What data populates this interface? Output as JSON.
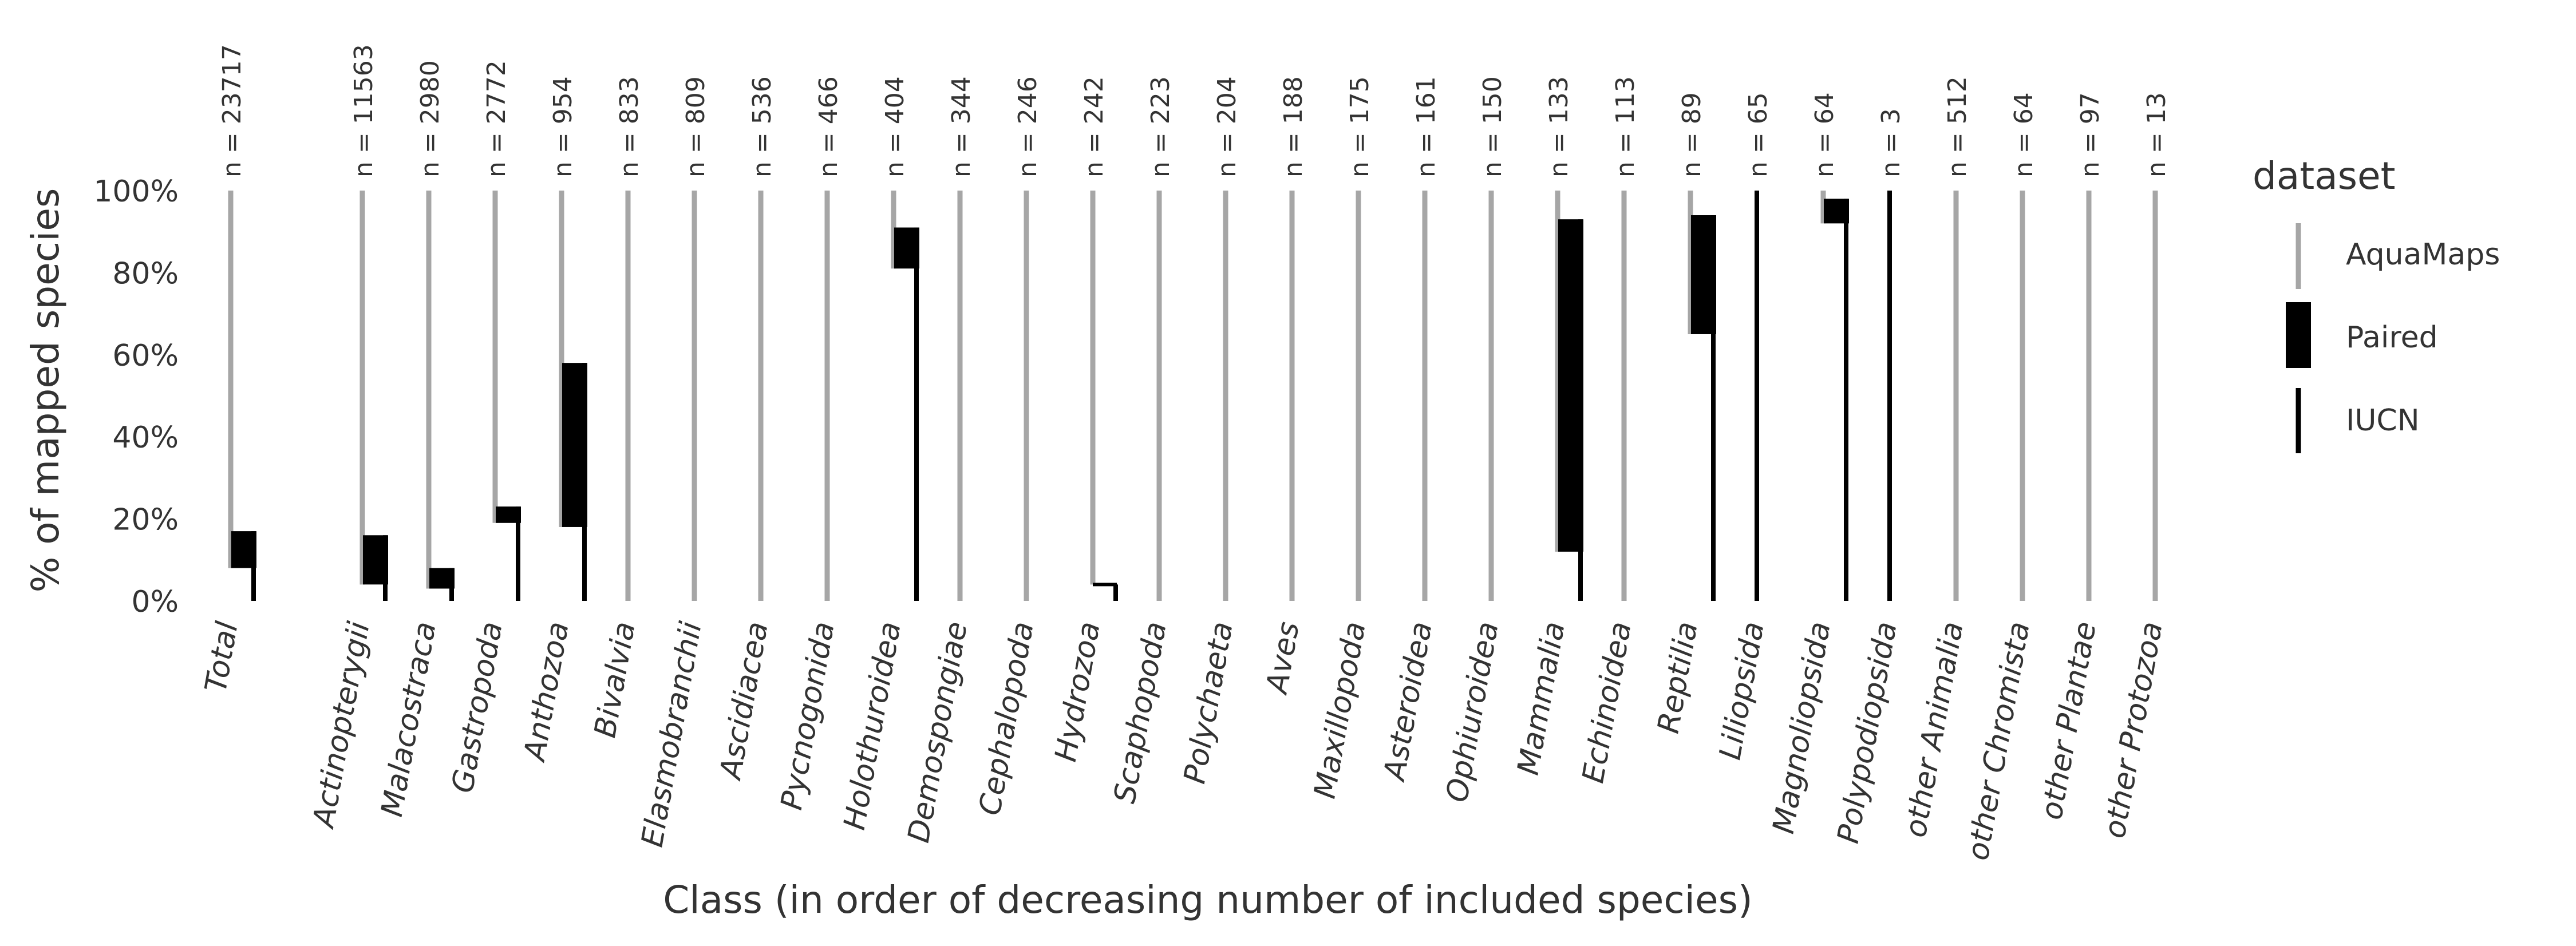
{
  "chart_data": {
    "type": "bar",
    "xlabel": "Class (in order of decreasing number of included species)",
    "ylabel": "% of mapped species",
    "ylim": [
      0,
      100
    ],
    "yticks": [
      "0%",
      "20%",
      "40%",
      "60%",
      "80%",
      "100%"
    ],
    "legend": {
      "title": "dataset",
      "placement": "right",
      "entries": [
        "AquaMaps",
        "Paired",
        "IUCN"
      ]
    },
    "colors": {
      "AquaMaps": "#a6a6a6",
      "Paired": "#000000",
      "IUCN": "#000000"
    },
    "categories": [
      "Total",
      "Actinopterygii",
      "Malacostraca",
      "Gastropoda",
      "Anthozoa",
      "Bivalvia",
      "Elasmobranchii",
      "Ascidiacea",
      "Pycnogonida",
      "Holothuroidea",
      "Demospongiae",
      "Cephalopoda",
      "Hydrozoa",
      "Scaphopoda",
      "Polychaeta",
      "Aves",
      "Maxillopoda",
      "Asteroidea",
      "Ophiuroidea",
      "Mammalia",
      "Echinoidea",
      "Reptilia",
      "Liliopsida",
      "Magnoliopsida",
      "Polypodiopsida",
      "other Animalia",
      "other Chromista",
      "other Plantae",
      "other Protozoa"
    ],
    "counts": [
      "n = 23717",
      "n = 11563",
      "n = 2980",
      "n = 2772",
      "n = 954",
      "n = 833",
      "n = 809",
      "n = 536",
      "n = 466",
      "n = 404",
      "n = 344",
      "n = 246",
      "n = 242",
      "n = 223",
      "n = 204",
      "n = 188",
      "n = 175",
      "n = 161",
      "n = 150",
      "n = 133",
      "n = 113",
      "n = 89",
      "n = 65",
      "n = 64",
      "n = 3",
      "n = 512",
      "n = 64",
      "n = 97",
      "n = 13"
    ],
    "series": [
      {
        "name": "AquaMaps",
        "ranges": [
          [
            8,
            100
          ],
          [
            4,
            100
          ],
          [
            3,
            100
          ],
          [
            19,
            100
          ],
          [
            18,
            100
          ],
          [
            0,
            100
          ],
          [
            0,
            100
          ],
          [
            0,
            100
          ],
          [
            0,
            100
          ],
          [
            81,
            100
          ],
          [
            0,
            100
          ],
          [
            0,
            100
          ],
          [
            4,
            100
          ],
          [
            0,
            100
          ],
          [
            0,
            100
          ],
          [
            0,
            100
          ],
          [
            0,
            100
          ],
          [
            0,
            100
          ],
          [
            0,
            100
          ],
          [
            12,
            100
          ],
          [
            0,
            100
          ],
          [
            65,
            100
          ],
          [
            0,
            0
          ],
          [
            92,
            100
          ],
          [
            0,
            0
          ],
          [
            0,
            100
          ],
          [
            0,
            100
          ],
          [
            0,
            100
          ],
          [
            0,
            100
          ]
        ]
      },
      {
        "name": "Paired",
        "ranges": [
          [
            8,
            17
          ],
          [
            4,
            16
          ],
          [
            3,
            8
          ],
          [
            19,
            23
          ],
          [
            18,
            58
          ],
          [
            0,
            0
          ],
          [
            0,
            0
          ],
          [
            0,
            0
          ],
          [
            0,
            0
          ],
          [
            81,
            91
          ],
          [
            0,
            0
          ],
          [
            0,
            0
          ],
          [
            4,
            4
          ],
          [
            0,
            0
          ],
          [
            0,
            0
          ],
          [
            0,
            0
          ],
          [
            0,
            0
          ],
          [
            0,
            0
          ],
          [
            0,
            0
          ],
          [
            12,
            93
          ],
          [
            0,
            0
          ],
          [
            65,
            94
          ],
          [
            0,
            0
          ],
          [
            92,
            98
          ],
          [
            0,
            0
          ],
          [
            0,
            0
          ],
          [
            0,
            0
          ],
          [
            0,
            0
          ],
          [
            0,
            0
          ]
        ]
      },
      {
        "name": "IUCN",
        "ranges": [
          [
            0,
            17
          ],
          [
            0,
            16
          ],
          [
            0,
            8
          ],
          [
            0,
            23
          ],
          [
            0,
            58
          ],
          [
            0,
            0
          ],
          [
            0,
            0
          ],
          [
            0,
            0
          ],
          [
            0,
            0
          ],
          [
            0,
            91
          ],
          [
            0,
            0
          ],
          [
            0,
            0
          ],
          [
            0,
            4
          ],
          [
            0,
            0
          ],
          [
            0,
            0
          ],
          [
            0,
            0
          ],
          [
            0,
            0
          ],
          [
            0,
            0
          ],
          [
            0,
            0
          ],
          [
            0,
            93
          ],
          [
            0,
            0
          ],
          [
            0,
            94
          ],
          [
            0,
            100
          ],
          [
            0,
            98
          ],
          [
            0,
            100
          ],
          [
            0,
            0
          ],
          [
            0,
            0
          ],
          [
            0,
            0
          ],
          [
            0,
            0
          ]
        ]
      }
    ]
  }
}
